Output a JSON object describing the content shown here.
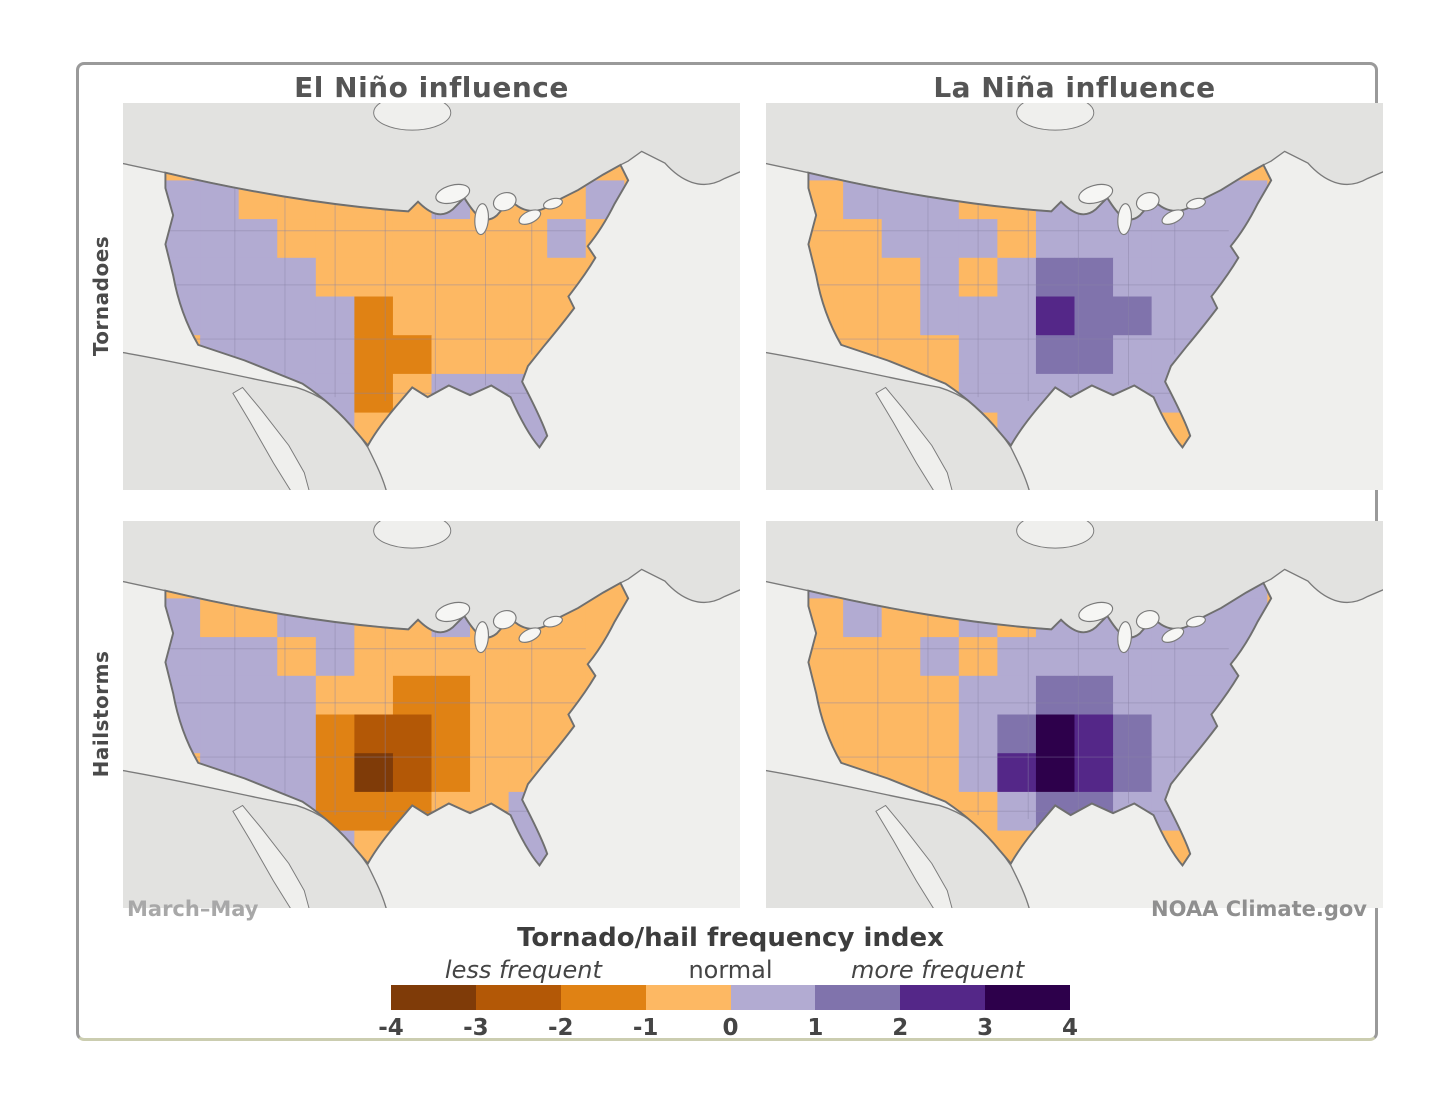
{
  "figure": {
    "column_titles": [
      "El Niño influence",
      "La Niña influence"
    ],
    "row_labels": [
      "Tornadoes",
      "Hailstorms"
    ],
    "season_label": "March–May",
    "attribution": "NOAA Climate.gov"
  },
  "legend": {
    "title": "Tornado/hail frequency index",
    "qualifiers": [
      "less frequent",
      "normal",
      "more frequent"
    ],
    "ticks": [
      "-4",
      "-3",
      "-2",
      "-1",
      "0",
      "1",
      "2",
      "3",
      "4"
    ],
    "bin_colors": [
      "#7F3B08",
      "#B35806",
      "#E08214",
      "#FDB863",
      "#B2ABD2",
      "#8073AC",
      "#542788",
      "#2D004B"
    ]
  },
  "colors": {
    "ocean": "#EFEFED",
    "foreign_land": "#E2E2E0",
    "coastline": "#7a7a7a",
    "state_line": "#8a84a6",
    "us_border": "#6f6f6f",
    "lake_fill": "#f6f6f4"
  },
  "chart_data": {
    "type": "heatmap",
    "title": "Tornado/hail frequency index",
    "season": "March–May",
    "columns": [
      "El Niño influence",
      "La Niña influence"
    ],
    "rows": [
      "Tornadoes",
      "Hailstorms"
    ],
    "value_scale": {
      "ticks": [
        -4,
        -3,
        -2,
        -1,
        0,
        1,
        2,
        3,
        4
      ],
      "less_label": "less frequent",
      "normal_label": "normal",
      "more_label": "more frequent",
      "bin_values": [
        -4,
        -3,
        -2,
        -1,
        1,
        2,
        3,
        4
      ],
      "note": "negative = less frequent (browns/oranges), positive = more frequent (purples); cell values are frequency-index bins over the contiguous US"
    },
    "grid_shape": {
      "cols": 16,
      "rows": 10
    },
    "maps": [
      {
        "row": "Tornadoes",
        "column": "El Niño influence",
        "grid": [
          [
            -1,
            -1,
            -1,
            -1,
            -1,
            -1,
            -1,
            -1,
            -1,
            -1,
            -1,
            -1,
            -1,
            -1,
            -1,
            -1
          ],
          [
            -1,
            -1,
            -1,
            -1,
            1,
            1,
            -1,
            -1,
            -1,
            -1,
            -1,
            -1,
            -1,
            -1,
            -1,
            -1
          ],
          [
            -1,
            1,
            1,
            -1,
            -1,
            -1,
            -1,
            -1,
            1,
            -1,
            -1,
            -1,
            1,
            -1,
            -1,
            -1
          ],
          [
            -1,
            1,
            1,
            1,
            -1,
            -1,
            -1,
            -1,
            -1,
            -1,
            -1,
            1,
            -1,
            -1,
            -1,
            -1
          ],
          [
            -1,
            1,
            1,
            1,
            1,
            -1,
            -1,
            -1,
            -1,
            -1,
            -1,
            -1,
            -1,
            -1,
            -1,
            -1
          ],
          [
            -1,
            1,
            1,
            1,
            1,
            1,
            -2,
            -1,
            -1,
            -1,
            -1,
            -1,
            -1,
            -1,
            -1,
            -1
          ],
          [
            -1,
            -1,
            1,
            1,
            1,
            1,
            -2,
            -2,
            -1,
            -1,
            -1,
            -1,
            -1,
            -1,
            -1,
            -1
          ],
          [
            -1,
            -1,
            -1,
            -1,
            1,
            1,
            -2,
            -1,
            1,
            1,
            1,
            1,
            -1,
            -1,
            -1,
            -1
          ],
          [
            -1,
            -1,
            -1,
            -1,
            -1,
            1,
            -1,
            -1,
            -1,
            1,
            1,
            -1,
            -1,
            -1,
            -1,
            -1
          ],
          [
            -1,
            -1,
            -1,
            -1,
            -1,
            -1,
            -1,
            -1,
            -1,
            -1,
            1,
            -1,
            -1,
            -1,
            -1,
            -1
          ]
        ]
      },
      {
        "row": "Tornadoes",
        "column": "La Niña influence",
        "grid": [
          [
            -1,
            -1,
            -1,
            -1,
            -1,
            -1,
            -1,
            -1,
            -1,
            -1,
            -1,
            -1,
            -1,
            -1,
            -1,
            -1
          ],
          [
            -1,
            1,
            -1,
            1,
            -1,
            1,
            1,
            -1,
            1,
            -1,
            -1,
            -1,
            -1,
            -1,
            -1,
            -1
          ],
          [
            -1,
            -1,
            1,
            1,
            1,
            -1,
            -1,
            1,
            1,
            1,
            1,
            1,
            1,
            -1,
            -1,
            -1
          ],
          [
            -1,
            -1,
            -1,
            1,
            1,
            1,
            -1,
            1,
            1,
            1,
            1,
            1,
            1,
            -1,
            -1,
            -1
          ],
          [
            -1,
            -1,
            -1,
            -1,
            1,
            -1,
            1,
            2,
            2,
            1,
            1,
            1,
            1,
            1,
            -1,
            -1
          ],
          [
            -1,
            -1,
            -1,
            -1,
            1,
            1,
            1,
            3,
            2,
            2,
            1,
            1,
            1,
            1,
            -1,
            -1
          ],
          [
            -1,
            -1,
            -1,
            -1,
            -1,
            1,
            1,
            2,
            2,
            1,
            1,
            1,
            1,
            -1,
            -1,
            -1
          ],
          [
            -1,
            -1,
            -1,
            -1,
            -1,
            1,
            1,
            1,
            1,
            1,
            1,
            -1,
            -1,
            -1,
            -1,
            -1
          ],
          [
            -1,
            -1,
            -1,
            -1,
            -1,
            -1,
            1,
            1,
            -1,
            -1,
            -1,
            -1,
            -1,
            -1,
            -1,
            -1
          ],
          [
            -1,
            -1,
            -1,
            -1,
            -1,
            -1,
            -1,
            -1,
            -1,
            -1,
            -1,
            -1,
            -1,
            -1,
            -1,
            -1
          ]
        ]
      },
      {
        "row": "Hailstorms",
        "column": "El Niño influence",
        "grid": [
          [
            -1,
            -1,
            -1,
            -1,
            -1,
            -1,
            -1,
            -1,
            -1,
            -1,
            -1,
            -1,
            -1,
            -1,
            -1,
            -1
          ],
          [
            -1,
            -1,
            1,
            -1,
            1,
            -1,
            -1,
            1,
            -1,
            -1,
            -1,
            -1,
            -1,
            -1,
            -1,
            -1
          ],
          [
            -1,
            1,
            -1,
            -1,
            1,
            1,
            -1,
            -1,
            1,
            -1,
            -1,
            -1,
            -1,
            -1,
            -1,
            -1
          ],
          [
            -1,
            1,
            1,
            1,
            -1,
            1,
            -1,
            -1,
            -1,
            -1,
            -1,
            -1,
            -1,
            -1,
            -1,
            -1
          ],
          [
            -1,
            1,
            1,
            1,
            1,
            -1,
            -1,
            -2,
            -2,
            -1,
            -1,
            -1,
            -1,
            -1,
            -1,
            -1
          ],
          [
            -1,
            1,
            1,
            1,
            1,
            -2,
            -3,
            -3,
            -2,
            -1,
            -1,
            -1,
            -1,
            -1,
            -1,
            -1
          ],
          [
            -1,
            -1,
            1,
            1,
            1,
            -2,
            -4,
            -3,
            -2,
            -1,
            -1,
            -1,
            -1,
            -1,
            -1,
            -1
          ],
          [
            -1,
            -1,
            -1,
            1,
            1,
            -2,
            -2,
            -2,
            -1,
            -1,
            1,
            1,
            -1,
            -1,
            -1,
            -1
          ],
          [
            -1,
            -1,
            -1,
            -1,
            -1,
            1,
            -1,
            -1,
            -1,
            1,
            1,
            -1,
            -1,
            -1,
            -1,
            -1
          ],
          [
            -1,
            -1,
            -1,
            -1,
            -1,
            -1,
            -1,
            -1,
            -1,
            -1,
            1,
            -1,
            -1,
            -1,
            -1,
            -1
          ]
        ]
      },
      {
        "row": "Hailstorms",
        "column": "La Niña influence",
        "grid": [
          [
            -1,
            -1,
            -1,
            -1,
            -1,
            -1,
            -1,
            -1,
            -1,
            -1,
            -1,
            -1,
            -1,
            -1,
            -1,
            -1
          ],
          [
            -1,
            1,
            -1,
            -1,
            1,
            -1,
            1,
            -1,
            -1,
            1,
            -1,
            -1,
            1,
            -1,
            -1,
            -1
          ],
          [
            -1,
            -1,
            1,
            -1,
            -1,
            1,
            -1,
            1,
            1,
            1,
            1,
            1,
            1,
            -1,
            -1,
            -1
          ],
          [
            -1,
            -1,
            -1,
            -1,
            1,
            -1,
            1,
            1,
            1,
            1,
            1,
            1,
            1,
            -1,
            -1,
            -1
          ],
          [
            -1,
            -1,
            -1,
            -1,
            -1,
            1,
            1,
            2,
            2,
            1,
            1,
            1,
            1,
            1,
            -1,
            -1
          ],
          [
            -1,
            -1,
            -1,
            -1,
            -1,
            1,
            2,
            4,
            3,
            2,
            1,
            1,
            1,
            1,
            -1,
            -1
          ],
          [
            -1,
            -1,
            -1,
            -1,
            -1,
            1,
            3,
            4,
            3,
            2,
            1,
            1,
            1,
            -1,
            -1,
            -1
          ],
          [
            -1,
            -1,
            -1,
            -1,
            -1,
            -1,
            1,
            2,
            2,
            1,
            1,
            1,
            -1,
            -1,
            -1,
            -1
          ],
          [
            -1,
            -1,
            -1,
            -1,
            -1,
            -1,
            -1,
            1,
            1,
            1,
            -1,
            -1,
            -1,
            -1,
            -1,
            -1
          ],
          [
            -1,
            -1,
            -1,
            -1,
            -1,
            -1,
            -1,
            -1,
            -1,
            -1,
            -1,
            -1,
            -1,
            -1,
            -1,
            -1
          ]
        ]
      }
    ]
  }
}
